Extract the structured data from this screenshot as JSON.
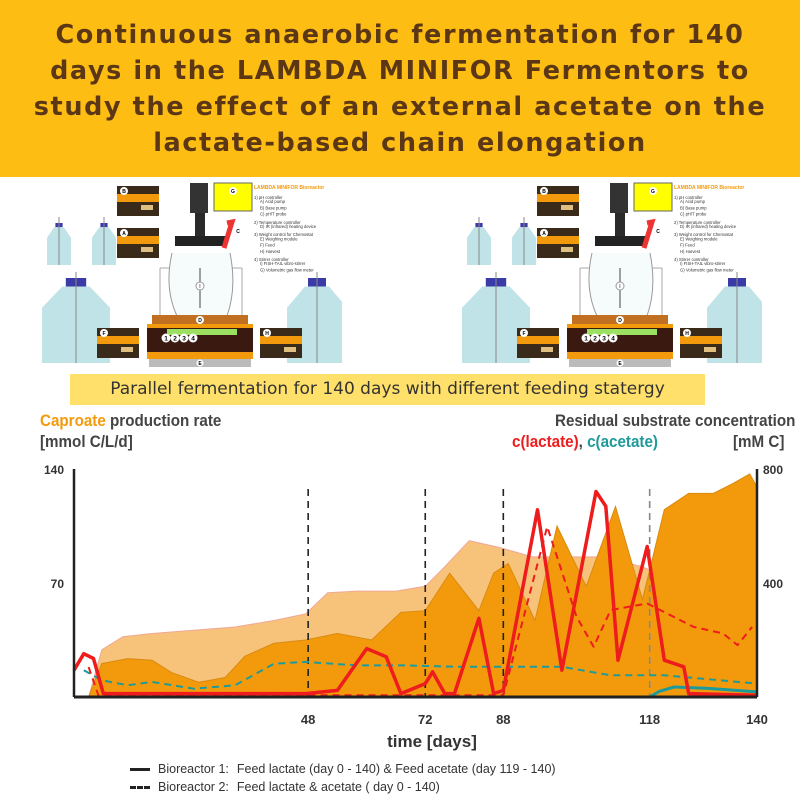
{
  "header": {
    "title": "Continuous anaerobic fermentation for 140 days in the LAMBDA MINIFOR Fermentors to study the effect of an external acetate on the lactate-based chain elongation"
  },
  "diagram": {
    "heading": "LAMBDA MINIFOR Bioreactor",
    "legend_lines": [
      "1) pH controller",
      "A) Acid pump",
      "B) Base pump",
      "C) pH/T probe",
      "2) Temperature controller",
      "D) IR (infrared) heating device",
      "3) Weight control for Chemostat",
      "E) Weighing module",
      "F) Feed",
      "H) Harvest",
      "4) Stirrer controller",
      "I) FISH-TAIL vibro-stirrer",
      "G) Volumetric gas flow meter"
    ],
    "markers": [
      "A",
      "B",
      "C",
      "D",
      "E",
      "F",
      "G",
      "H",
      "I"
    ],
    "panel_numbers": [
      "1",
      "2",
      "3",
      "4"
    ]
  },
  "subtitle": "Parallel fermentation for 140 days with different feeding statergy",
  "chart_data": {
    "type": "area",
    "left_axis": {
      "title_highlight": "Caproate",
      "title_rest": " production rate",
      "unit": "[mmol C/L/d]",
      "ylim": [
        0,
        140
      ],
      "ticks": [
        "140",
        "70"
      ]
    },
    "right_axis": {
      "title": "Residual substrate concentration",
      "series_lactate": "c(lactate)",
      "sep": ", ",
      "series_acetate": "c(acetate)",
      "unit": "[mM C]",
      "ylim": [
        0,
        800
      ],
      "ticks": [
        "800",
        "400"
      ]
    },
    "x_axis": {
      "label": "time [days]",
      "xlim": [
        0,
        140
      ],
      "ticks": [
        "48",
        "72",
        "88",
        "118",
        "140"
      ],
      "phase_lines": [
        48,
        72,
        88,
        118
      ]
    },
    "colors": {
      "caproate_br1": "#F39A0C",
      "caproate_br2": "#F7C27A",
      "lactate": "#EE1C1C",
      "acetate": "#1E9A9A"
    },
    "series": [
      {
        "name": "Bioreactor 2",
        "quantity": "caproate",
        "axis": "left",
        "x": [
          3,
          5.7,
          10,
          16,
          24.5,
          33,
          41,
          47.5,
          52,
          58,
          66,
          72,
          76,
          81,
          87,
          94,
          100,
          108,
          116.5,
          118
        ],
        "y": [
          0,
          29,
          37,
          39,
          41,
          43,
          47,
          51,
          64,
          65,
          65,
          68,
          80,
          96,
          92,
          86,
          86,
          86,
          80,
          78
        ]
      },
      {
        "name": "Bioreactor 1",
        "quantity": "caproate",
        "axis": "left",
        "x": [
          3,
          5.7,
          11,
          16,
          20,
          25.6,
          31,
          35,
          41,
          47.5,
          54,
          61,
          67,
          72,
          77,
          83,
          86,
          89,
          94.5,
          99,
          105,
          111,
          116.5,
          118,
          121,
          126,
          131,
          135,
          138.5,
          140
        ],
        "y": [
          0,
          20.5,
          23.6,
          22.6,
          15,
          9,
          12,
          25,
          33,
          35,
          39,
          35,
          52,
          53,
          76,
          53,
          76,
          82,
          47,
          105,
          68,
          117,
          60,
          78,
          115,
          125,
          125,
          131,
          137,
          129
        ]
      },
      {
        "name": "Bioreactor 2",
        "quantity": "acetate",
        "axis": "right",
        "x": [
          2,
          5.7,
          11,
          16,
          24.5,
          33,
          41,
          47.5,
          58,
          68,
          79,
          89,
          100,
          110,
          121,
          140
        ],
        "y": [
          94,
          59,
          41,
          53,
          29,
          41,
          117,
          123,
          111,
          111,
          106,
          106,
          106,
          76,
          76,
          47
        ]
      },
      {
        "name": "Bioreactor 1",
        "quantity": "acetate",
        "axis": "right",
        "x": [
          118,
          120,
          123,
          130,
          140
        ],
        "y": [
          0,
          20,
          35,
          30,
          18
        ]
      },
      {
        "name": "Bioreactor 2",
        "quantity": "lactate",
        "axis": "right",
        "x": [
          3,
          5,
          88,
          97,
          103,
          106.5,
          110,
          117.5,
          127,
          133,
          136,
          139
        ],
        "y": [
          105,
          6,
          6,
          598,
          282,
          176,
          305,
          328,
          246,
          223,
          182,
          246
        ]
      },
      {
        "name": "Bioreactor 1",
        "quantity": "lactate",
        "axis": "right",
        "x": [
          0,
          2,
          4,
          6,
          47.5,
          54,
          60,
          64,
          67,
          72,
          73.5,
          76,
          78,
          83,
          86,
          88,
          95,
          100,
          107,
          109,
          111.5,
          117.5,
          121,
          125,
          126,
          140
        ],
        "y": [
          94,
          152,
          135,
          12,
          12,
          23,
          170,
          141,
          12,
          47,
          88,
          12,
          12,
          276,
          12,
          23,
          657,
          94,
          721,
          669,
          129,
          528,
          129,
          106,
          12,
          6
        ]
      }
    ]
  },
  "legend": [
    {
      "label": "Bioreactor 1:",
      "text": "Feed lactate (day 0 - 140) &  Feed acetate (day 119 - 140)",
      "style": "solid"
    },
    {
      "label": "Bioreactor 2:",
      "text": "Feed lactate & acetate ( day 0 - 140)",
      "style": "dashed"
    }
  ]
}
